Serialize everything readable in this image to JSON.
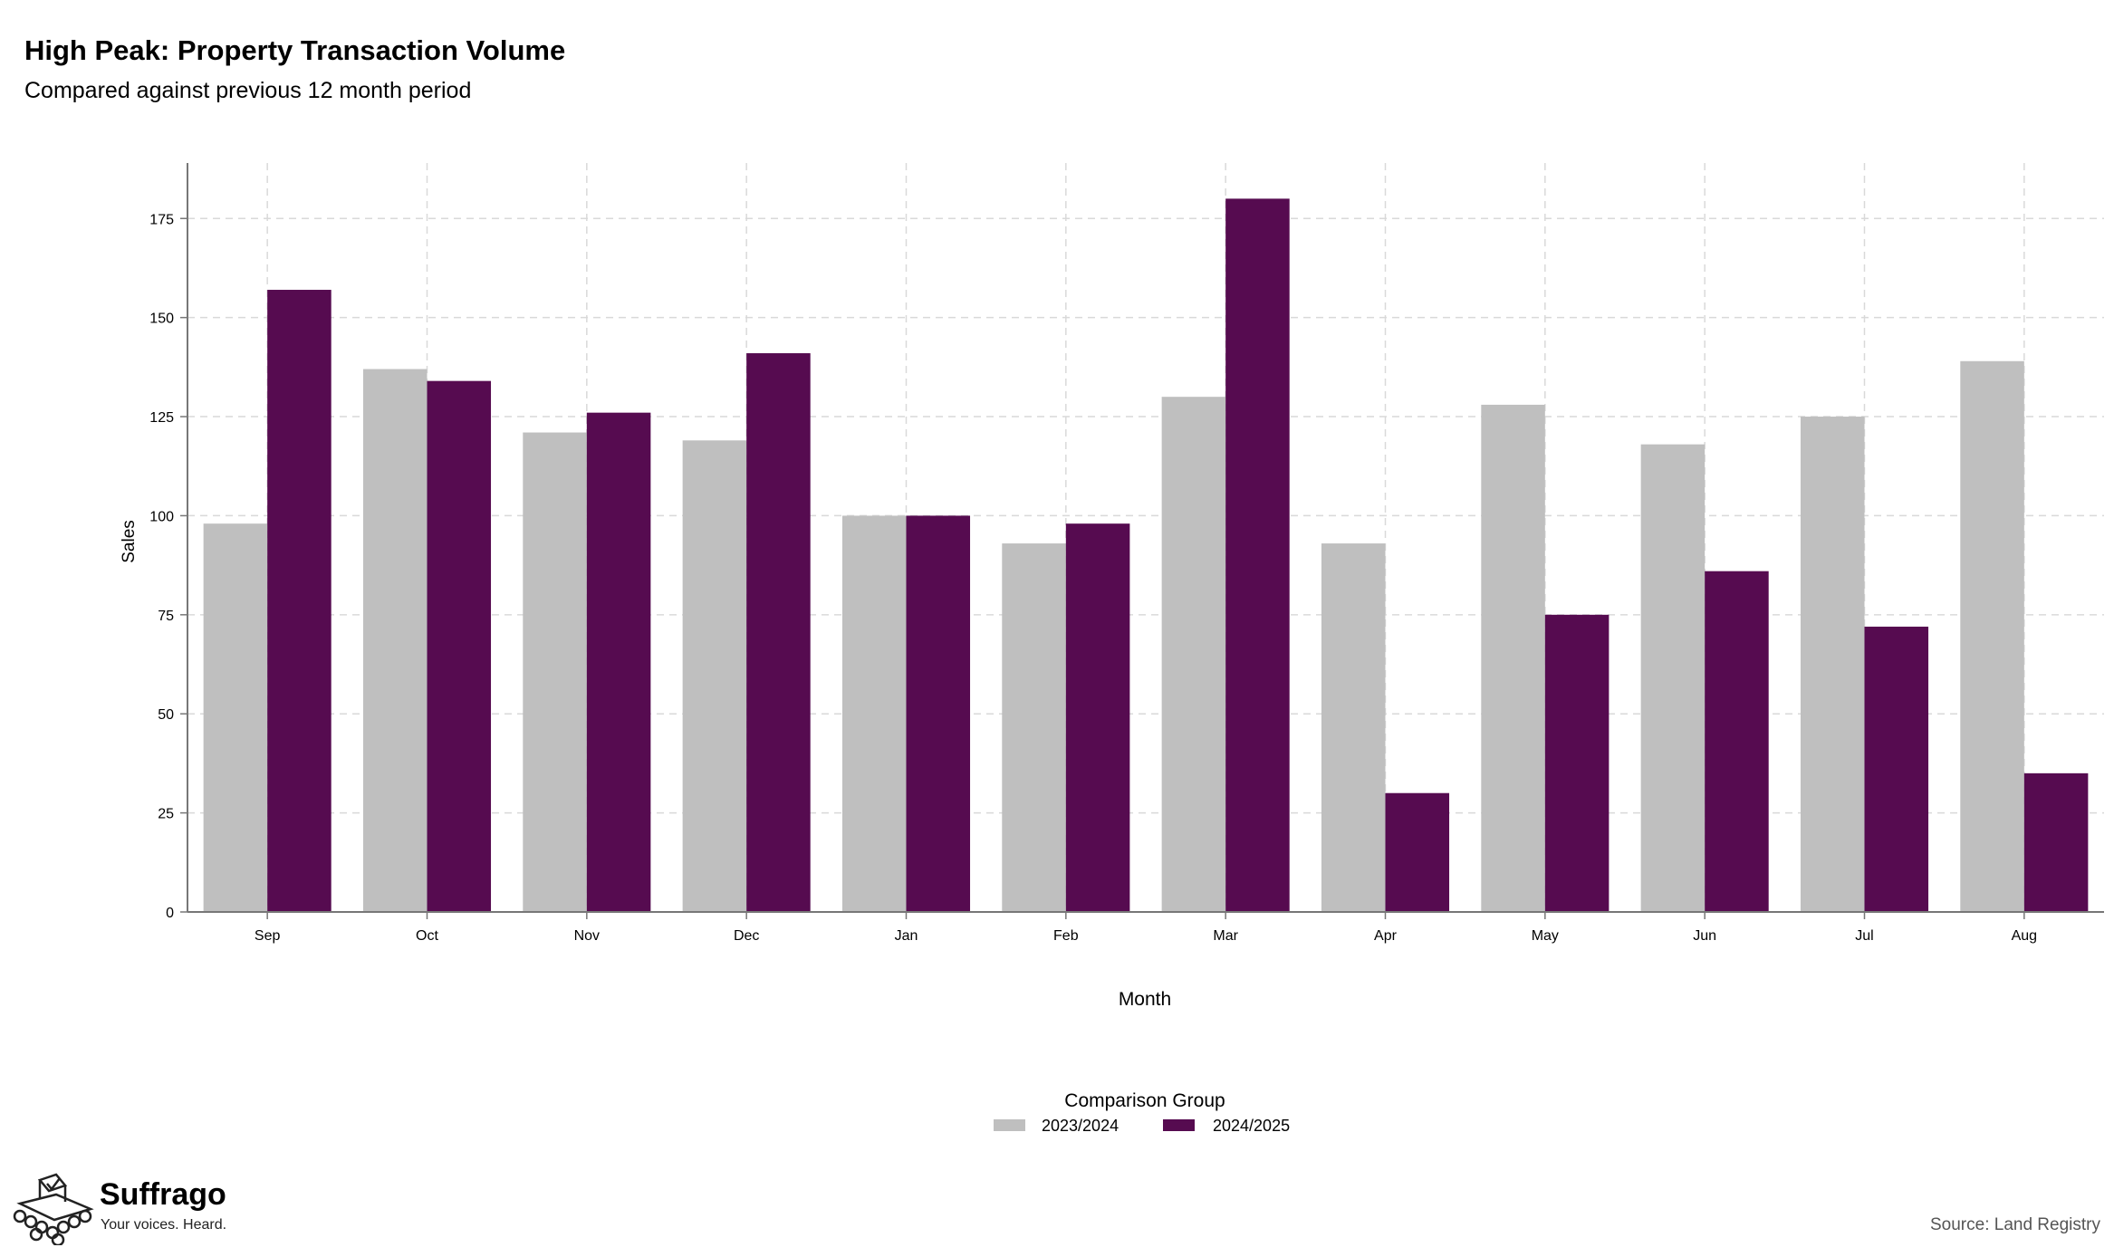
{
  "header": {
    "title": "High Peak: Property Transaction Volume",
    "subtitle": "Compared against previous 12 month period"
  },
  "footer": {
    "brand_name": "Suffrago",
    "brand_tagline": "Your voices. Heard.",
    "source": "Source: Land Registry"
  },
  "colors": {
    "series_2023": "#bfbfbf",
    "series_2024": "#560b50",
    "grid": "#d9d9d9"
  },
  "chart_data": {
    "type": "bar",
    "title": "High Peak: Property Transaction Volume",
    "subtitle": "Compared against previous 12 month period",
    "xlabel": "Month",
    "ylabel": "Sales",
    "categories": [
      "Sep",
      "Oct",
      "Nov",
      "Dec",
      "Jan",
      "Feb",
      "Mar",
      "Apr",
      "May",
      "Jun",
      "Jul",
      "Aug"
    ],
    "series": [
      {
        "name": "2023/2024",
        "color": "#bfbfbf",
        "values": [
          98,
          137,
          121,
          119,
          100,
          93,
          130,
          93,
          128,
          118,
          125,
          139
        ]
      },
      {
        "name": "2024/2025",
        "color": "#560b50",
        "values": [
          157,
          134,
          126,
          141,
          100,
          98,
          180,
          30,
          75,
          86,
          72,
          35
        ]
      }
    ],
    "ylim": [
      0,
      189
    ],
    "yticks": [
      0,
      25,
      50,
      75,
      100,
      125,
      150,
      175
    ],
    "grid": true,
    "legend": {
      "title": "Comparison Group",
      "position": "bottom"
    }
  }
}
